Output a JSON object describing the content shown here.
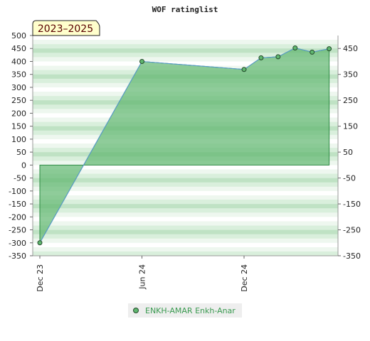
{
  "chart_data": {
    "type": "area",
    "title": "WOF ratinglist",
    "badge": "2023–2025",
    "x_ticks": [
      "Dec 23",
      "Jun 24",
      "Dec 24"
    ],
    "left_axis_ticks": [
      500,
      450,
      400,
      350,
      300,
      250,
      200,
      150,
      100,
      50,
      0,
      -50,
      -100,
      -150,
      -200,
      -250,
      -300,
      -350
    ],
    "right_axis_ticks": [
      450,
      350,
      250,
      150,
      50,
      -50,
      -150,
      -250,
      -350
    ],
    "ylim": [
      -350,
      500
    ],
    "series": [
      {
        "name": "ENKH-AMAR Enkh-Anar",
        "color": "#5fb66f",
        "line_color": "#5b9bd5",
        "points": [
          {
            "x": "2023-12",
            "y": -300
          },
          {
            "x": "2024-06",
            "y": 400
          },
          {
            "x": "2024-12",
            "y": 369
          },
          {
            "x": "2025-01",
            "y": 414
          },
          {
            "x": "2025-02",
            "y": 418
          },
          {
            "x": "2025-03",
            "y": 452
          },
          {
            "x": "2025-04",
            "y": 436
          },
          {
            "x": "2025-05",
            "y": 449
          }
        ]
      }
    ],
    "legend": {
      "position": "bottom",
      "label": "ENKH-AMAR Enkh-Anar"
    }
  }
}
